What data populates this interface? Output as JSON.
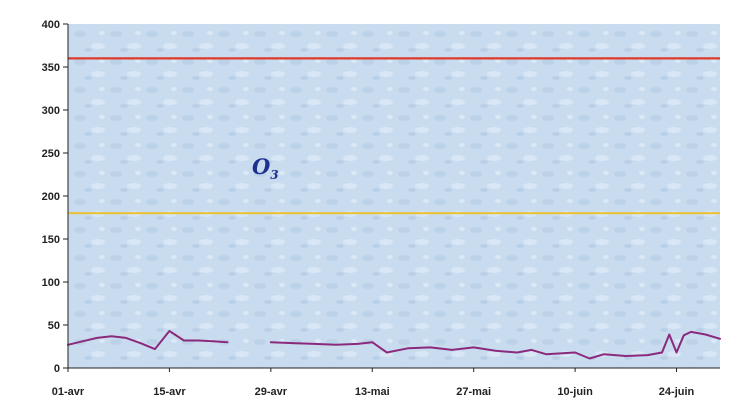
{
  "chart_data": {
    "type": "line",
    "title": "",
    "xlabel": "",
    "ylabel": "",
    "ylim": [
      0,
      400
    ],
    "yticks": [
      0,
      50,
      100,
      150,
      200,
      250,
      300,
      350,
      400
    ],
    "xticks": [
      "01-avr",
      "15-avr",
      "29-avr",
      "13-mai",
      "27-mai",
      "10-juin",
      "24-juin"
    ],
    "x_start": "2007-04-01",
    "x_end": "2007-06-30",
    "grid": false,
    "legend": "none",
    "annotation": {
      "main": "O",
      "sub": "3"
    },
    "reference_lines": [
      {
        "value": 360,
        "color": "#e03a2a"
      },
      {
        "value": 180,
        "color": "#e8c23a"
      }
    ],
    "series": [
      {
        "color": "#8b2a7c",
        "x": [
          "2007-04-01",
          "2007-04-03",
          "2007-04-05",
          "2007-04-07",
          "2007-04-09",
          "2007-04-11",
          "2007-04-13",
          "2007-04-15",
          "2007-04-17",
          "2007-04-19",
          "2007-04-21",
          "2007-04-23",
          "2007-04-26",
          "2007-04-29",
          "2007-05-02",
          "2007-05-05",
          "2007-05-08",
          "2007-05-11",
          "2007-05-13",
          "2007-05-15",
          "2007-05-18",
          "2007-05-21",
          "2007-05-24",
          "2007-05-27",
          "2007-05-30",
          "2007-06-02",
          "2007-06-04",
          "2007-06-06",
          "2007-06-08",
          "2007-06-10",
          "2007-06-12",
          "2007-06-14",
          "2007-06-17",
          "2007-06-20",
          "2007-06-22",
          "2007-06-23",
          "2007-06-24",
          "2007-06-25",
          "2007-06-26",
          "2007-06-28",
          "2007-06-30"
        ],
        "values": [
          27,
          31,
          35,
          37,
          35,
          29,
          22,
          43,
          32,
          32,
          31,
          30,
          null,
          30,
          29,
          28,
          27,
          28,
          30,
          18,
          23,
          24,
          21,
          24,
          20,
          18,
          21,
          16,
          17,
          18,
          11,
          16,
          14,
          15,
          18,
          39,
          18,
          38,
          42,
          39,
          34
        ]
      }
    ]
  }
}
